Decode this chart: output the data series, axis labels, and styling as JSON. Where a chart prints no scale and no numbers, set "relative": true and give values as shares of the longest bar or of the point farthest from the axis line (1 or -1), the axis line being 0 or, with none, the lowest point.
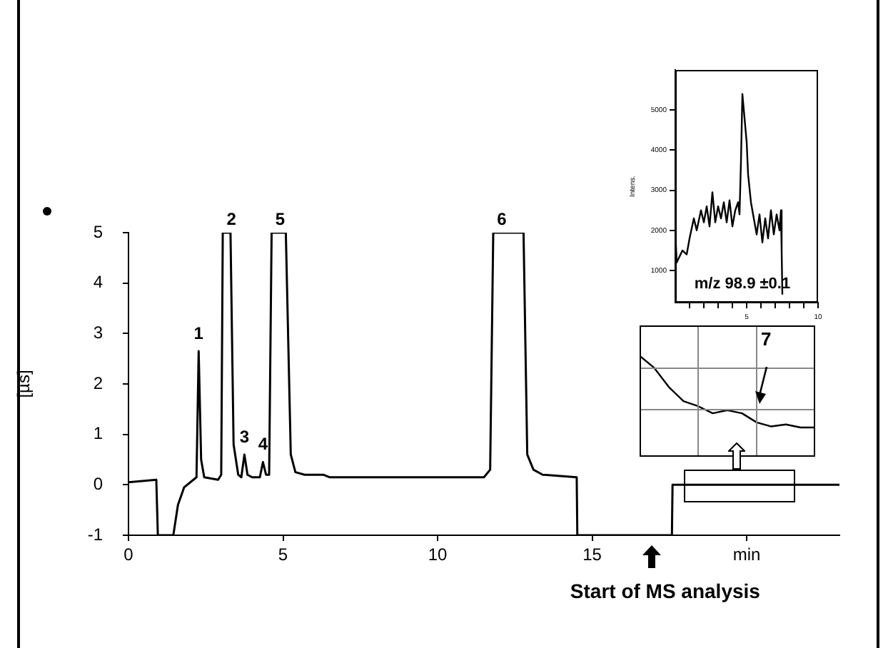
{
  "chart_data": [
    {
      "type": "line",
      "color": "#000000",
      "ylabel": "[µs]",
      "xlim": [
        0,
        23
      ],
      "xticks": [
        0,
        5,
        10,
        15,
        {
          "value": 20,
          "label": "min"
        }
      ],
      "ylim": [
        -1,
        5
      ],
      "yticks": [
        -1,
        0,
        1,
        2,
        3,
        4,
        5
      ],
      "legend": false,
      "grid": false,
      "marker": "none",
      "x": [
        0,
        0.9,
        0.95,
        1.45,
        1.6,
        1.8,
        2.1,
        2.2,
        2.27,
        2.35,
        2.45,
        2.9,
        3.0,
        3.05,
        3.3,
        3.4,
        3.55,
        3.65,
        3.75,
        3.85,
        4.0,
        4.25,
        4.35,
        4.45,
        4.55,
        4.63,
        5.09,
        5.25,
        5.4,
        5.7,
        6.3,
        6.5,
        11.5,
        11.7,
        11.8,
        12.78,
        12.9,
        13.1,
        13.4,
        14.5,
        14.52,
        17.58,
        17.6,
        23
      ],
      "values": [
        0.05,
        0.1,
        -1,
        -1,
        -0.4,
        -0.05,
        0.1,
        0.15,
        2.65,
        0.5,
        0.15,
        0.1,
        0.2,
        5,
        5,
        0.8,
        0.2,
        0.15,
        0.6,
        0.2,
        0.15,
        0.15,
        0.45,
        0.2,
        0.2,
        5,
        5,
        0.6,
        0.25,
        0.2,
        0.2,
        0.15,
        0.15,
        0.3,
        5,
        5,
        0.6,
        0.3,
        0.2,
        0.15,
        -1,
        -1,
        0,
        0
      ],
      "annotations": [
        {
          "text": "1",
          "x": 2.27,
          "y": 2.65
        },
        {
          "text": "2",
          "x": 3.05,
          "y": 5
        },
        {
          "text": "3",
          "x": 3.75,
          "y": 0.6
        },
        {
          "text": "4",
          "x": 4.35,
          "y": 0.45
        },
        {
          "text": "5",
          "x": 4.63,
          "y": 5
        },
        {
          "text": "6",
          "x": 11.8,
          "y": 5
        },
        {
          "text": "Start of MS analysis",
          "x": 16.9,
          "y": -1
        }
      ]
    },
    {
      "type": "line",
      "color": "#000000",
      "ylabel": "Intens.",
      "xlim": [
        0,
        10
      ],
      "xticks": [
        {
          "value": 1,
          "label": null
        },
        {
          "value": 2,
          "label": null
        },
        {
          "value": 3,
          "label": null
        },
        {
          "value": 4,
          "label": null
        },
        5,
        {
          "value": 6,
          "label": null
        },
        {
          "value": 7,
          "label": null
        },
        {
          "value": 8,
          "label": null
        },
        {
          "value": 9,
          "label": null
        },
        10
      ],
      "ylim": [
        200,
        6000
      ],
      "yticks": [
        1000,
        2000,
        3000,
        4000,
        5000
      ],
      "legend": false,
      "grid": false,
      "marker": "none",
      "x": [
        0,
        0.1,
        0.5,
        0.8,
        1.0,
        1.3,
        1.5,
        1.8,
        2.0,
        2.2,
        2.4,
        2.6,
        2.8,
        3.0,
        3.2,
        3.4,
        3.6,
        3.8,
        4.0,
        4.2,
        4.4,
        4.5,
        4.6,
        4.7,
        4.85,
        5.0,
        5.1,
        5.3,
        5.5,
        5.7,
        5.9,
        6.1,
        6.3,
        6.5,
        6.7,
        6.9,
        7.1,
        7.3,
        7.4,
        7.45,
        7.5
      ],
      "values": [
        2000,
        1200,
        1500,
        1400,
        1800,
        2300,
        2000,
        2500,
        2200,
        2600,
        2100,
        2950,
        2200,
        2600,
        2300,
        2700,
        2200,
        2750,
        2100,
        2500,
        2700,
        2400,
        3700,
        5400,
        4800,
        4200,
        3400,
        2700,
        2300,
        1900,
        2400,
        1700,
        2300,
        1800,
        2500,
        1900,
        2400,
        2000,
        2500,
        1500,
        400
      ],
      "annotations": [
        "m/z 98.9 ±0.1"
      ]
    },
    {
      "type": "line",
      "color": "#000000",
      "relative": true,
      "legend": false,
      "marker": "none",
      "categories": [
        null,
        null,
        null,
        null,
        null,
        null,
        null,
        null,
        null,
        null,
        null,
        null,
        null
      ],
      "values": [
        1,
        0.88,
        0.69,
        0.55,
        0.5,
        0.43,
        0.46,
        0.43,
        0.34,
        0.3,
        0.32,
        0.29,
        0.29
      ],
      "annotations": [
        "7"
      ]
    }
  ]
}
